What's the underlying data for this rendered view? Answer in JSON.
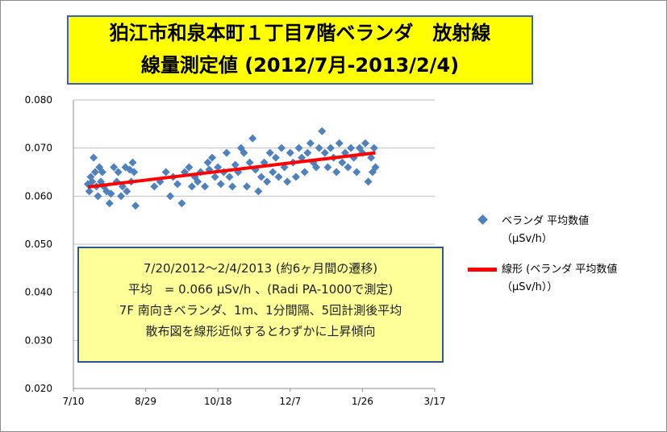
{
  "title": {
    "line1": "狛江市和泉本町１丁目7階ベランダ　放射線",
    "line2": "線量測定値 (2012/7月-2013/2/4)"
  },
  "note": {
    "line1": "7/20/2012～2/4/2013 (約6ヶ月間の遷移)",
    "line2": "平均　= 0.066 µSv/h 、(Radi PA-1000で測定)",
    "line3": "7F 南向きベランダ、1m、1分間隔、5回計測後平均",
    "line4": "散布図を線形近似するとわずかに上昇傾向"
  },
  "legend": {
    "scatter_label_1": "ベランダ 平均数値",
    "scatter_label_2": "（µSv/h）",
    "trend_label_1": "線形 (ベランダ 平均数値",
    "trend_label_2": "（µSv/h））"
  },
  "colors": {
    "points": "#4f81bd",
    "trend": "#ff0000",
    "title_bg": "#ffff00",
    "note_bg": "#ffff99"
  },
  "chart_data": {
    "type": "scatter",
    "xlabel": "",
    "ylabel": "",
    "x_ticks": [
      "7/10",
      "8/29",
      "10/18",
      "12/7",
      "1/26",
      "3/17"
    ],
    "y_ticks": [
      "0.020",
      "0.030",
      "0.040",
      "0.050",
      "0.060",
      "0.070",
      "0.080"
    ],
    "xlim": [
      "2012-07-10",
      "2013-03-17"
    ],
    "ylim": [
      0.02,
      0.08
    ],
    "grid": "horizontal",
    "legend_position": "right",
    "series": [
      {
        "name": "ベランダ 平均数値（µSv/h）",
        "points": [
          [
            "2012-07-20",
            0.0625
          ],
          [
            "2012-07-21",
            0.061
          ],
          [
            "2012-07-22",
            0.064
          ],
          [
            "2012-07-23",
            0.063
          ],
          [
            "2012-07-24",
            0.068
          ],
          [
            "2012-07-25",
            0.065
          ],
          [
            "2012-07-26",
            0.062
          ],
          [
            "2012-07-27",
            0.06
          ],
          [
            "2012-07-28",
            0.066
          ],
          [
            "2012-07-29",
            0.063
          ],
          [
            "2012-07-30",
            0.065
          ],
          [
            "2012-07-31",
            0.062
          ],
          [
            "2012-08-02",
            0.061
          ],
          [
            "2012-08-04",
            0.0585
          ],
          [
            "2012-08-05",
            0.0605
          ],
          [
            "2012-08-07",
            0.066
          ],
          [
            "2012-08-09",
            0.063
          ],
          [
            "2012-08-10",
            0.065
          ],
          [
            "2012-08-12",
            0.06
          ],
          [
            "2012-08-13",
            0.062
          ],
          [
            "2012-08-15",
            0.066
          ],
          [
            "2012-08-16",
            0.061
          ],
          [
            "2012-08-18",
            0.0655
          ],
          [
            "2012-08-19",
            0.063
          ],
          [
            "2012-08-20",
            0.067
          ],
          [
            "2012-08-21",
            0.065
          ],
          [
            "2012-08-22",
            0.058
          ],
          [
            "2012-09-04",
            0.062
          ],
          [
            "2012-09-08",
            0.063
          ],
          [
            "2012-09-12",
            0.065
          ],
          [
            "2012-09-15",
            0.06
          ],
          [
            "2012-09-17",
            0.064
          ],
          [
            "2012-09-20",
            0.0625
          ],
          [
            "2012-09-23",
            0.0585
          ],
          [
            "2012-09-25",
            0.065
          ],
          [
            "2012-09-28",
            0.066
          ],
          [
            "2012-09-30",
            0.062
          ],
          [
            "2012-10-02",
            0.064
          ],
          [
            "2012-10-04",
            0.063
          ],
          [
            "2012-10-06",
            0.065
          ],
          [
            "2012-10-09",
            0.062
          ],
          [
            "2012-10-11",
            0.067
          ],
          [
            "2012-10-12",
            0.0655
          ],
          [
            "2012-10-14",
            0.068
          ],
          [
            "2012-10-16",
            0.064
          ],
          [
            "2012-10-18",
            0.066
          ],
          [
            "2012-10-20",
            0.0625
          ],
          [
            "2012-10-22",
            0.065
          ],
          [
            "2012-10-24",
            0.069
          ],
          [
            "2012-10-26",
            0.064
          ],
          [
            "2012-10-28",
            0.062
          ],
          [
            "2012-10-30",
            0.0665
          ],
          [
            "2012-11-01",
            0.065
          ],
          [
            "2012-11-03",
            0.07
          ],
          [
            "2012-11-05",
            0.069
          ],
          [
            "2012-11-07",
            0.062
          ],
          [
            "2012-11-09",
            0.067
          ],
          [
            "2012-11-11",
            0.072
          ],
          [
            "2012-11-13",
            0.0655
          ],
          [
            "2012-11-15",
            0.061
          ],
          [
            "2012-11-17",
            0.064
          ],
          [
            "2012-11-19",
            0.067
          ],
          [
            "2012-11-21",
            0.063
          ],
          [
            "2012-11-23",
            0.069
          ],
          [
            "2012-11-25",
            0.065
          ],
          [
            "2012-11-27",
            0.068
          ],
          [
            "2012-11-29",
            0.064
          ],
          [
            "2012-12-01",
            0.07
          ],
          [
            "2012-12-03",
            0.066
          ],
          [
            "2012-12-05",
            0.063
          ],
          [
            "2012-12-07",
            0.069
          ],
          [
            "2012-12-09",
            0.067
          ],
          [
            "2012-12-11",
            0.064
          ],
          [
            "2012-12-13",
            0.07
          ],
          [
            "2012-12-15",
            0.068
          ],
          [
            "2012-12-17",
            0.065
          ],
          [
            "2012-12-19",
            0.069
          ],
          [
            "2012-12-21",
            0.071
          ],
          [
            "2012-12-23",
            0.067
          ],
          [
            "2012-12-25",
            0.066
          ],
          [
            "2012-12-27",
            0.07
          ],
          [
            "2012-12-29",
            0.0735
          ],
          [
            "2012-12-31",
            0.069
          ],
          [
            "2013-01-02",
            0.066
          ],
          [
            "2013-01-04",
            0.07
          ],
          [
            "2013-01-06",
            0.068
          ],
          [
            "2013-01-08",
            0.065
          ],
          [
            "2013-01-10",
            0.071
          ],
          [
            "2013-01-12",
            0.067
          ],
          [
            "2013-01-14",
            0.069
          ],
          [
            "2013-01-16",
            0.066
          ],
          [
            "2013-01-18",
            0.07
          ],
          [
            "2013-01-20",
            0.068
          ],
          [
            "2013-01-22",
            0.065
          ],
          [
            "2013-01-24",
            0.07
          ],
          [
            "2013-01-26",
            0.069
          ],
          [
            "2013-01-28",
            0.071
          ],
          [
            "2013-01-30",
            0.063
          ],
          [
            "2013-02-01",
            0.068
          ],
          [
            "2013-02-02",
            0.065
          ],
          [
            "2013-02-03",
            0.07
          ],
          [
            "2013-02-04",
            0.066
          ]
        ]
      },
      {
        "name": "線形 (ベランダ 平均数値（µSv/h））",
        "type": "line",
        "points": [
          [
            "2012-07-20",
            0.0619
          ],
          [
            "2013-02-04",
            0.069
          ]
        ]
      }
    ]
  }
}
